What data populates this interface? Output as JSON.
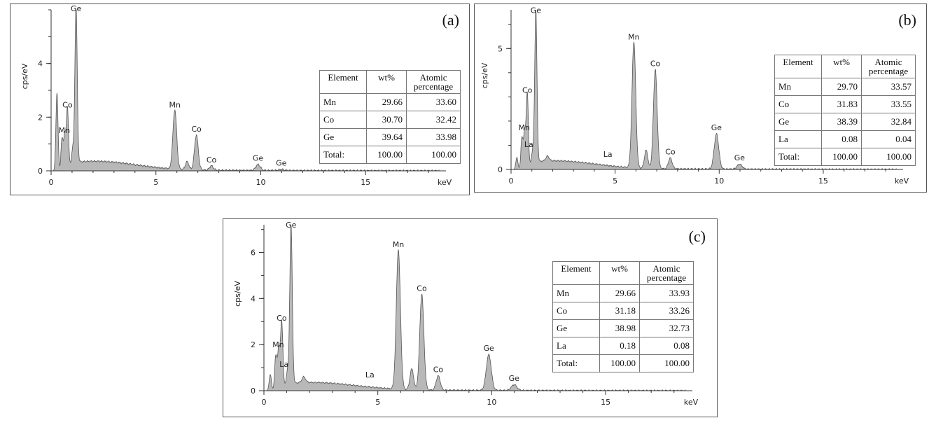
{
  "chart_data": [
    {
      "type": "area",
      "panel_label": "(a)",
      "xlabel": "keV",
      "ylabel": "cps/eV",
      "xlim": [
        0,
        18.5
      ],
      "ylim": [
        0,
        6.0
      ],
      "xticks": [
        "0",
        "5",
        "10",
        "15"
      ],
      "yticks": [
        "0",
        "2",
        "4"
      ],
      "ytick_values": [
        0,
        2,
        4
      ],
      "peaks": [
        {
          "x": 0.28,
          "y": 2.9,
          "w": 0.05
        },
        {
          "x": 0.52,
          "y": 1.1,
          "w": 0.05
        },
        {
          "x": 0.65,
          "y": 1.25,
          "w": 0.05
        },
        {
          "x": 0.78,
          "y": 2.2,
          "w": 0.05
        },
        {
          "x": 1.03,
          "y": 0.6,
          "w": 0.05
        },
        {
          "x": 1.19,
          "y": 5.9,
          "w": 0.055
        },
        {
          "x": 5.9,
          "y": 2.2,
          "w": 0.09
        },
        {
          "x": 6.49,
          "y": 0.3,
          "w": 0.08
        },
        {
          "x": 6.93,
          "y": 1.3,
          "w": 0.09
        },
        {
          "x": 7.65,
          "y": 0.16,
          "w": 0.09
        },
        {
          "x": 9.87,
          "y": 0.22,
          "w": 0.11
        },
        {
          "x": 10.98,
          "y": 0.04,
          "w": 0.12
        }
      ],
      "peak_labels": [
        {
          "text": "Ge",
          "x": 1.19,
          "y": 5.9
        },
        {
          "text": "Co",
          "x": 0.78,
          "y": 2.2
        },
        {
          "text": "Mn",
          "x": 0.63,
          "y": 1.25
        },
        {
          "text": "Mn",
          "x": 5.9,
          "y": 2.2
        },
        {
          "text": "Co",
          "x": 6.93,
          "y": 1.3
        },
        {
          "text": "Co",
          "x": 7.65,
          "y": 0.16
        },
        {
          "text": "Ge",
          "x": 9.87,
          "y": 0.22
        },
        {
          "text": "Ge",
          "x": 10.98,
          "y": 0.04
        }
      ],
      "table": {
        "headers": [
          "Element",
          "wt%",
          "Atomic percentage"
        ],
        "rows": [
          [
            "Mn",
            "29.66",
            "33.60"
          ],
          [
            "Co",
            "30.70",
            "32.42"
          ],
          [
            "Ge",
            "39.64",
            "33.98"
          ],
          [
            "Total:",
            "100.00",
            "100.00"
          ]
        ]
      }
    },
    {
      "type": "area",
      "panel_label": "(b)",
      "xlabel": "keV",
      "ylabel": "cps/eV",
      "xlim": [
        0,
        18.5
      ],
      "ylim": [
        0,
        6.6
      ],
      "xticks": [
        "0",
        "5",
        "10",
        "15"
      ],
      "yticks": [
        "0",
        "5"
      ],
      "ytick_values": [
        0,
        5
      ],
      "peaks": [
        {
          "x": 0.28,
          "y": 0.5,
          "w": 0.05
        },
        {
          "x": 0.52,
          "y": 1.2,
          "w": 0.05
        },
        {
          "x": 0.65,
          "y": 1.45,
          "w": 0.05
        },
        {
          "x": 0.78,
          "y": 3.0,
          "w": 0.05
        },
        {
          "x": 1.03,
          "y": 0.5,
          "w": 0.05
        },
        {
          "x": 1.19,
          "y": 6.3,
          "w": 0.055
        },
        {
          "x": 1.75,
          "y": 0.2,
          "w": 0.08
        },
        {
          "x": 5.9,
          "y": 5.2,
          "w": 0.09
        },
        {
          "x": 6.49,
          "y": 0.75,
          "w": 0.08
        },
        {
          "x": 6.93,
          "y": 4.1,
          "w": 0.09
        },
        {
          "x": 7.65,
          "y": 0.45,
          "w": 0.09
        },
        {
          "x": 9.87,
          "y": 1.45,
          "w": 0.11
        },
        {
          "x": 10.98,
          "y": 0.2,
          "w": 0.12
        }
      ],
      "peak_labels": [
        {
          "text": "Ge",
          "x": 1.19,
          "y": 6.3
        },
        {
          "text": "Co",
          "x": 0.78,
          "y": 3.0
        },
        {
          "text": "Mn",
          "x": 0.63,
          "y": 1.45
        },
        {
          "text": "La",
          "x": 0.85,
          "y": 0.75
        },
        {
          "text": "La",
          "x": 4.65,
          "y": 0.35
        },
        {
          "text": "Mn",
          "x": 5.9,
          "y": 5.2
        },
        {
          "text": "Co",
          "x": 6.93,
          "y": 4.1
        },
        {
          "text": "Co",
          "x": 7.65,
          "y": 0.45
        },
        {
          "text": "Ge",
          "x": 9.87,
          "y": 1.45
        },
        {
          "text": "Ge",
          "x": 10.98,
          "y": 0.2
        }
      ],
      "table": {
        "headers": [
          "Element",
          "wt%",
          "Atomic percentage"
        ],
        "rows": [
          [
            "Mn",
            "29.70",
            "33.57"
          ],
          [
            "Co",
            "31.83",
            "33.55"
          ],
          [
            "Ge",
            "38.39",
            "32.84"
          ],
          [
            "La",
            "0.08",
            "0.04"
          ],
          [
            "Total:",
            "100.00",
            "100.00"
          ]
        ]
      }
    },
    {
      "type": "area",
      "panel_label": "(c)",
      "xlabel": "keV",
      "ylabel": "cps/eV",
      "xlim": [
        0,
        18.5
      ],
      "ylim": [
        0,
        7.2
      ],
      "xticks": [
        "0",
        "5",
        "10",
        "15"
      ],
      "yticks": [
        "0",
        "2",
        "4",
        "6"
      ],
      "ytick_values": [
        0,
        2,
        4,
        6
      ],
      "peaks": [
        {
          "x": 0.28,
          "y": 0.7,
          "w": 0.05
        },
        {
          "x": 0.52,
          "y": 1.4,
          "w": 0.05
        },
        {
          "x": 0.65,
          "y": 1.7,
          "w": 0.05
        },
        {
          "x": 0.78,
          "y": 2.85,
          "w": 0.05
        },
        {
          "x": 1.03,
          "y": 0.6,
          "w": 0.05
        },
        {
          "x": 1.19,
          "y": 6.9,
          "w": 0.055
        },
        {
          "x": 1.75,
          "y": 0.25,
          "w": 0.08
        },
        {
          "x": 5.9,
          "y": 6.05,
          "w": 0.09
        },
        {
          "x": 6.49,
          "y": 0.9,
          "w": 0.08
        },
        {
          "x": 6.93,
          "y": 4.15,
          "w": 0.09
        },
        {
          "x": 7.65,
          "y": 0.62,
          "w": 0.09
        },
        {
          "x": 9.87,
          "y": 1.55,
          "w": 0.11
        },
        {
          "x": 10.98,
          "y": 0.25,
          "w": 0.12
        }
      ],
      "peak_labels": [
        {
          "text": "Ge",
          "x": 1.19,
          "y": 6.9
        },
        {
          "text": "Co",
          "x": 0.78,
          "y": 2.85
        },
        {
          "text": "Mn",
          "x": 0.63,
          "y": 1.7
        },
        {
          "text": "La",
          "x": 0.88,
          "y": 0.85
        },
        {
          "text": "La",
          "x": 4.65,
          "y": 0.4
        },
        {
          "text": "Mn",
          "x": 5.9,
          "y": 6.05
        },
        {
          "text": "Co",
          "x": 6.93,
          "y": 4.15
        },
        {
          "text": "Co",
          "x": 7.65,
          "y": 0.62
        },
        {
          "text": "Ge",
          "x": 9.87,
          "y": 1.55
        },
        {
          "text": "Ge",
          "x": 10.98,
          "y": 0.25
        }
      ],
      "table": {
        "headers": [
          "Element",
          "wt%",
          "Atomic percentage"
        ],
        "rows": [
          [
            "Mn",
            "29.66",
            "33.93"
          ],
          [
            "Co",
            "31.18",
            "33.26"
          ],
          [
            "Ge",
            "38.98",
            "32.73"
          ],
          [
            "La",
            "0.18",
            "0.08"
          ],
          [
            "Total:",
            "100.00",
            "100.00"
          ]
        ]
      }
    }
  ]
}
